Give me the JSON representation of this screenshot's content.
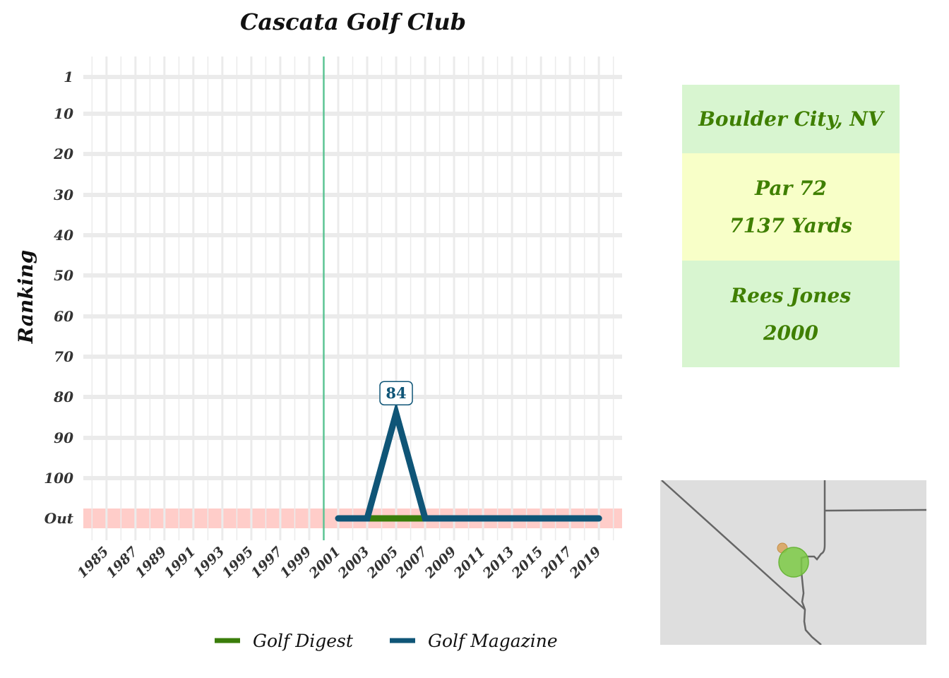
{
  "colors": {
    "golf_digest": "#3a7d0a",
    "golf_magazine": "#0f5577",
    "out_band": "#ffcdc9",
    "open_year_line": "#5cc494",
    "info_text": "#3f7f00",
    "info_bg_green": "#d8f5d0",
    "info_bg_yellow": "#f8ffc8",
    "map_bg": "#dedede",
    "map_course_marker": "#7cca45",
    "map_city_marker": "#d9a25a"
  },
  "chart_data": {
    "type": "line",
    "title": "Cascata Golf Club",
    "xlabel": "",
    "ylabel": "Ranking",
    "x_ticks": [
      1985,
      1987,
      1989,
      1991,
      1993,
      1995,
      1997,
      1999,
      2001,
      2003,
      2005,
      2007,
      2009,
      2011,
      2013,
      2015,
      2017,
      2019
    ],
    "y_tick_labels": [
      "1",
      "10",
      "20",
      "30",
      "40",
      "50",
      "60",
      "70",
      "80",
      "90",
      "100",
      "Out"
    ],
    "y_tick_values": [
      1,
      10,
      20,
      30,
      40,
      50,
      60,
      70,
      80,
      90,
      100,
      110
    ],
    "xlim": [
      1983.4,
      2020.6
    ],
    "ylim": [
      1,
      110
    ],
    "y_reversed": true,
    "grid": true,
    "out_value": 110,
    "vertical_line_year": 2000,
    "legend_position": "bottom",
    "series": [
      {
        "name": "Golf Digest",
        "color_key": "golf_digest",
        "points": [
          [
            2003,
            110
          ],
          [
            2007,
            110
          ]
        ]
      },
      {
        "name": "Golf Magazine",
        "color_key": "golf_magazine",
        "points": [
          [
            2001,
            110
          ],
          [
            2003,
            110
          ],
          [
            2005,
            84
          ],
          [
            2007,
            110
          ],
          [
            2009,
            110
          ],
          [
            2011,
            110
          ],
          [
            2013,
            110
          ],
          [
            2015,
            110
          ],
          [
            2017,
            110
          ],
          [
            2019,
            110
          ]
        ]
      }
    ],
    "annotations": [
      {
        "x": 2005,
        "y": 84,
        "text": "84",
        "series": "Golf Magazine"
      }
    ]
  },
  "info": {
    "location": "Boulder City, NV",
    "par": "Par 72",
    "yards": "7137 Yards",
    "designer": "Rees Jones",
    "year": "2000"
  },
  "map": {
    "markers": [
      {
        "name": "course-location-marker",
        "color_key": "map_course_marker"
      },
      {
        "name": "city-marker",
        "color_key": "map_city_marker"
      }
    ]
  }
}
